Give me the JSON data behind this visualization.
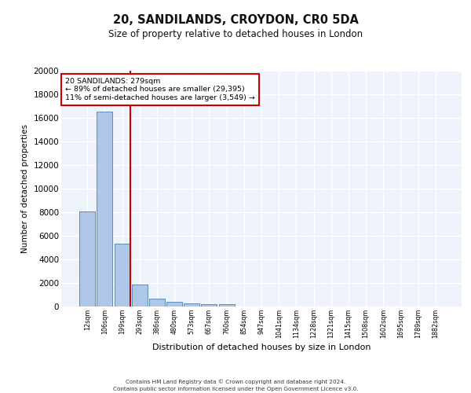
{
  "title1": "20, SANDILANDS, CROYDON, CR0 5DA",
  "title2": "Size of property relative to detached houses in London",
  "xlabel": "Distribution of detached houses by size in London",
  "ylabel": "Number of detached properties",
  "annotation_line1": "20 SANDILANDS: 279sqm",
  "annotation_line2": "← 89% of detached houses are smaller (29,395)",
  "annotation_line3": "11% of semi-detached houses are larger (3,549) →",
  "bin_labels": [
    "12sqm",
    "106sqm",
    "199sqm",
    "293sqm",
    "386sqm",
    "480sqm",
    "573sqm",
    "667sqm",
    "760sqm",
    "854sqm",
    "947sqm",
    "1041sqm",
    "1134sqm",
    "1228sqm",
    "1321sqm",
    "1415sqm",
    "1508sqm",
    "1602sqm",
    "1695sqm",
    "1789sqm",
    "1882sqm"
  ],
  "bin_values": [
    8100,
    16500,
    5350,
    1850,
    700,
    380,
    290,
    230,
    200,
    0,
    0,
    0,
    0,
    0,
    0,
    0,
    0,
    0,
    0,
    0,
    0
  ],
  "bar_color": "#aec6e8",
  "bar_edge_color": "#5b8db8",
  "vline_color": "#cc0000",
  "vline_pos": 2.45,
  "ylim": [
    0,
    20000
  ],
  "yticks": [
    0,
    2000,
    4000,
    6000,
    8000,
    10000,
    12000,
    14000,
    16000,
    18000,
    20000
  ],
  "background_color": "#edf2fb",
  "grid_color": "#ffffff",
  "footer_line1": "Contains HM Land Registry data © Crown copyright and database right 2024.",
  "footer_line2": "Contains public sector information licensed under the Open Government Licence v3.0."
}
